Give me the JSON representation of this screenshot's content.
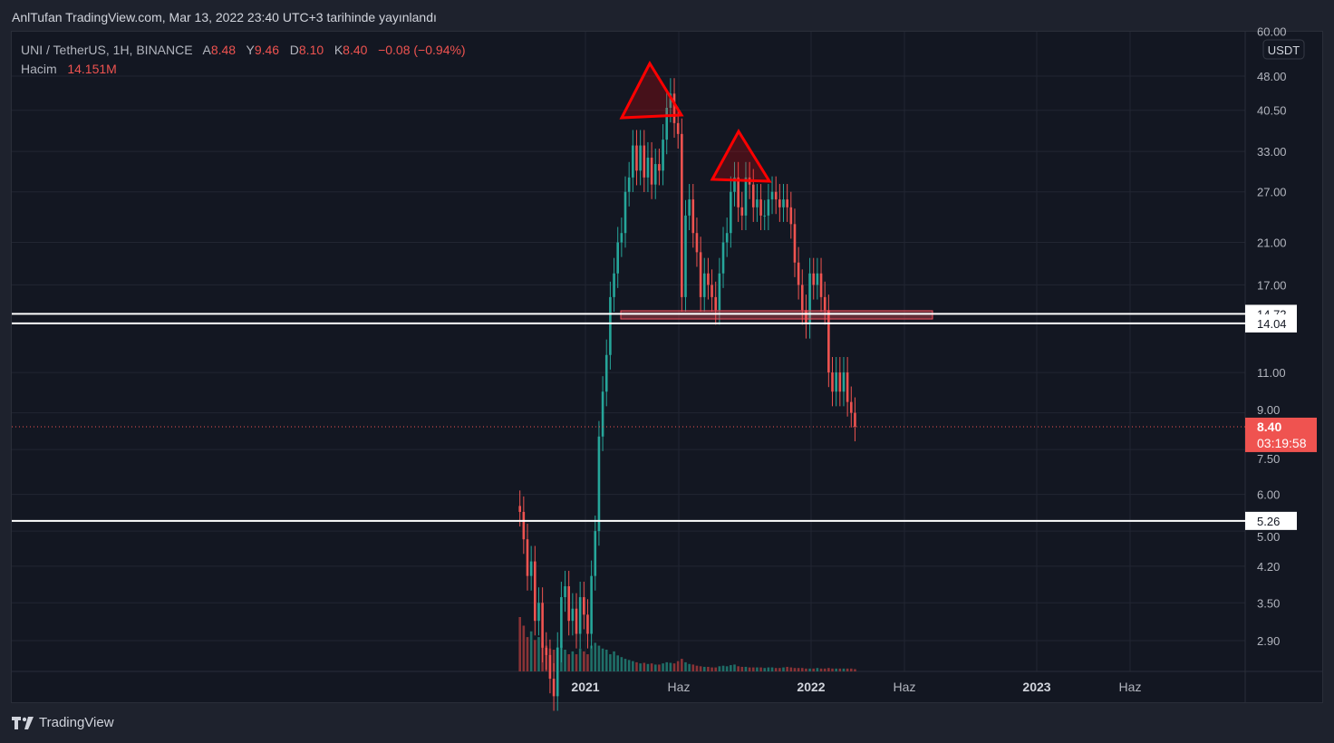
{
  "header": {
    "published": "AnlTufan TradingView.com, Mar 13, 2022 23:40 UTC+3 tarihinde yayınlandı"
  },
  "legend": {
    "symbol": "UNI / TetherUS, 1H, BINANCE",
    "open_label": "A",
    "open": "8.48",
    "high_label": "Y",
    "high": "9.46",
    "low_label": "D",
    "low": "8.10",
    "close_label": "K",
    "close": "8.40",
    "change": "−0.08 (−0.94%)",
    "volume_label": "Hacim",
    "volume": "14.151M"
  },
  "price_axis": {
    "currency": "USDT",
    "ticks": [
      "60.00",
      "48.00",
      "40.50",
      "33.00",
      "27.00",
      "21.00",
      "17.00",
      "11.00",
      "9.00",
      "7.50",
      "6.00",
      "5.00",
      "4.20",
      "3.50",
      "2.90"
    ],
    "scale": "log"
  },
  "time_axis": {
    "ticks": [
      {
        "label": "2021",
        "date": "2021-01-01",
        "year": true
      },
      {
        "label": "Haz",
        "date": "2021-06-01",
        "year": false
      },
      {
        "label": "2022",
        "date": "2022-01-01",
        "year": true
      },
      {
        "label": "Haz",
        "date": "2022-06-01",
        "year": false
      },
      {
        "label": "2023",
        "date": "2023-01-01",
        "year": true
      },
      {
        "label": "Haz",
        "date": "2023-06-01",
        "year": false
      }
    ]
  },
  "levels": [
    {
      "price": 14.72,
      "label": "14.72"
    },
    {
      "price": 14.04,
      "label": "14.04"
    },
    {
      "price": 5.26,
      "label": "5.26"
    }
  ],
  "current_price": {
    "label": "8.40",
    "countdown": "03:19:58",
    "color": "#ef5350"
  },
  "colors": {
    "up": "#26a69a",
    "down": "#ef5350",
    "up_vol": "#1f6f68",
    "down_vol": "#8a3336",
    "drawing": "#ff0000",
    "zone": "#f7525f"
  },
  "footer": {
    "brand": "TradingView"
  },
  "chart_data": {
    "type": "candlestick",
    "first_date": "2020-09-17",
    "last_date": "2022-03-13",
    "closes": [
      5.5,
      4.8,
      4.0,
      4.3,
      3.2,
      3.5,
      2.8,
      2.7,
      2.4,
      2.2,
      2.8,
      3.6,
      3.8,
      3.2,
      3.4,
      3.0,
      3.6,
      3.3,
      3.0,
      4.0,
      5.0,
      8,
      10,
      12,
      16,
      18,
      21,
      22,
      27,
      29,
      34,
      30,
      34,
      29,
      32,
      28,
      31,
      30,
      35,
      41,
      44,
      38,
      36,
      16,
      24,
      26,
      22,
      20,
      16,
      18,
      17,
      16,
      15,
      18,
      21,
      22,
      27,
      29,
      25,
      24,
      29,
      28,
      25,
      26,
      24,
      24,
      26,
      27,
      26,
      25,
      26,
      25,
      23,
      19,
      17,
      15,
      14,
      18,
      17,
      18,
      16,
      15,
      11,
      10,
      11,
      10,
      11,
      9.5,
      9,
      8.4
    ],
    "volume": [
      95,
      80,
      60,
      70,
      55,
      60,
      50,
      45,
      40,
      38,
      42,
      45,
      38,
      30,
      35,
      30,
      40,
      35,
      30,
      45,
      50,
      45,
      40,
      38,
      30,
      35,
      28,
      25,
      22,
      20,
      18,
      16,
      14,
      15,
      13,
      14,
      12,
      12,
      14,
      16,
      15,
      14,
      18,
      22,
      16,
      13,
      12,
      10,
      9,
      8,
      8,
      7,
      7,
      9,
      10,
      9,
      11,
      12,
      9,
      8,
      8,
      7,
      7,
      7,
      7,
      6,
      7,
      7,
      6,
      6,
      7,
      8,
      7,
      6,
      6,
      6,
      5,
      5,
      5,
      6,
      5,
      5,
      6,
      5,
      5,
      5,
      5,
      5,
      5,
      4
    ]
  }
}
